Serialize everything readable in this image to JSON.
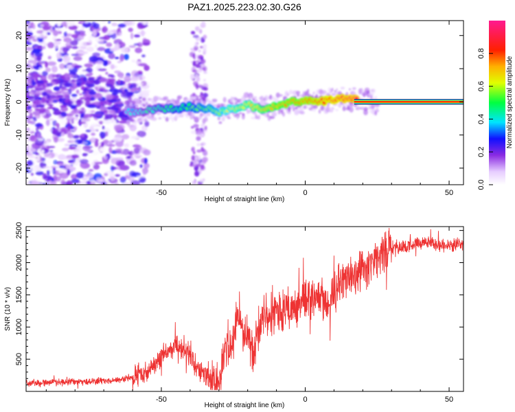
{
  "title": "PAZ1.2025.223.02.30.G26",
  "chart_data": [
    {
      "type": "heatmap",
      "title": "PAZ1.2025.223.02.30.G26",
      "xlabel": "Height of straight line (km)",
      "ylabel": "Frequency (Hz)",
      "xlim": [
        -97,
        55
      ],
      "ylim": [
        -25,
        24.5
      ],
      "xticks": [
        -50,
        0,
        50
      ],
      "yticks": [
        -20,
        -10,
        0,
        10,
        20
      ],
      "colorbar": {
        "label": "Normalized spectral amplitude",
        "range": [
          0,
          1
        ],
        "ticks": [
          "0.0",
          "0.2",
          "0.4",
          "0.6",
          "0.8"
        ]
      },
      "ridge": {
        "heights_km": [
          -60,
          -55,
          -50,
          -45,
          -40,
          -35,
          -30,
          -25,
          -20,
          -15,
          -10,
          -5,
          0,
          5,
          10,
          15,
          20,
          30,
          40,
          55
        ],
        "frequency_hz": [
          -3,
          -2.5,
          -2,
          -2,
          -1.5,
          -2,
          -3,
          -2,
          -1,
          -2,
          -1,
          0,
          0.2,
          0.2,
          0.5,
          1,
          0,
          0,
          0,
          0
        ]
      }
    },
    {
      "type": "line",
      "xlabel": "Height of straight line (km)",
      "ylabel": "SNR (10 * v/v)",
      "xlim": [
        -97,
        55
      ],
      "ylim": [
        0,
        2560
      ],
      "xticks": [
        -50,
        0,
        50
      ],
      "yticks": [
        500,
        1000,
        1500,
        2000,
        2500
      ],
      "series": [
        {
          "color": "#ee3333",
          "x": [
            -97,
            -90,
            -80,
            -70,
            -65,
            -60,
            -55,
            -52,
            -50,
            -47,
            -45,
            -42,
            -40,
            -38,
            -36,
            -34,
            -32,
            -30,
            -29,
            -28,
            -27,
            -26,
            -25,
            -24,
            -23,
            -22,
            -21,
            -20,
            -19,
            -18,
            -17,
            -16,
            -15,
            -14,
            -12,
            -10,
            -8,
            -6,
            -4,
            -2,
            0,
            2,
            4,
            6,
            8,
            10,
            12,
            14,
            16,
            18,
            20,
            22,
            24,
            26,
            28,
            30,
            35,
            40,
            45,
            50,
            55
          ],
          "y": [
            130,
            140,
            150,
            160,
            180,
            220,
            300,
            400,
            550,
            650,
            700,
            650,
            550,
            400,
            300,
            200,
            150,
            150,
            350,
            600,
            700,
            650,
            750,
            1100,
            1300,
            1000,
            800,
            900,
            700,
            500,
            800,
            1000,
            1200,
            1150,
            1250,
            1300,
            1200,
            1250,
            1300,
            1350,
            1400,
            1450,
            1500,
            1450,
            1400,
            1500,
            1650,
            1700,
            1750,
            1800,
            1850,
            1900,
            2000,
            2100,
            2150,
            2200,
            2250,
            2300,
            2300,
            2250,
            2300
          ]
        }
      ]
    }
  ]
}
